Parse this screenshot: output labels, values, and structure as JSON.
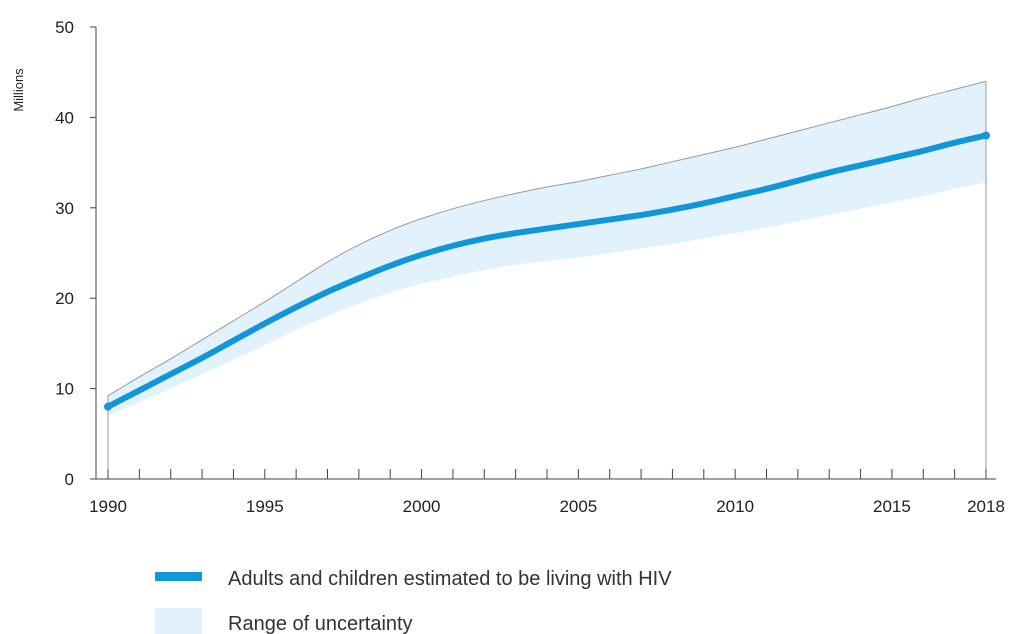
{
  "chart_data": {
    "type": "line",
    "title": "",
    "xlabel": "",
    "ylabel": "Millions",
    "xlim": [
      1990,
      2018
    ],
    "ylim": [
      0,
      50
    ],
    "x_ticks": [
      1990,
      1995,
      2000,
      2005,
      2010,
      2015,
      2018
    ],
    "y_ticks": [
      0,
      10,
      20,
      30,
      40,
      50
    ],
    "grid": false,
    "legend_position": "bottom",
    "colors": {
      "line": "#1196d8",
      "band_fill": "#e2f2fc",
      "band_stroke": "#9a9a9a",
      "axis": "#444444"
    },
    "x": [
      1990,
      1991,
      1992,
      1993,
      1994,
      1995,
      1996,
      1997,
      1998,
      1999,
      2000,
      2001,
      2002,
      2003,
      2004,
      2005,
      2006,
      2007,
      2008,
      2009,
      2010,
      2011,
      2012,
      2013,
      2014,
      2015,
      2016,
      2017,
      2018
    ],
    "series": [
      {
        "name": "Adults and children estimated to be living with HIV",
        "role": "estimate",
        "values": [
          8.0,
          9.8,
          11.6,
          13.4,
          15.3,
          17.2,
          19.0,
          20.7,
          22.2,
          23.6,
          24.8,
          25.8,
          26.6,
          27.2,
          27.7,
          28.2,
          28.7,
          29.2,
          29.8,
          30.5,
          31.3,
          32.1,
          33.0,
          33.9,
          34.7,
          35.5,
          36.3,
          37.2,
          38.0
        ]
      },
      {
        "name": "Range of uncertainty",
        "role": "range",
        "upper": [
          9.2,
          11.3,
          13.3,
          15.4,
          17.5,
          19.6,
          21.8,
          24.0,
          25.9,
          27.5,
          28.8,
          29.9,
          30.8,
          31.6,
          32.3,
          32.9,
          33.6,
          34.3,
          35.1,
          35.9,
          36.7,
          37.6,
          38.5,
          39.4,
          40.3,
          41.2,
          42.2,
          43.1,
          44.0
        ],
        "lower": [
          7.0,
          8.5,
          10.0,
          11.6,
          13.2,
          14.8,
          16.5,
          18.0,
          19.4,
          20.6,
          21.6,
          22.4,
          23.1,
          23.7,
          24.1,
          24.5,
          25.0,
          25.5,
          26.0,
          26.6,
          27.2,
          27.8,
          28.5,
          29.2,
          29.9,
          30.6,
          31.3,
          32.1,
          32.8
        ]
      }
    ]
  }
}
